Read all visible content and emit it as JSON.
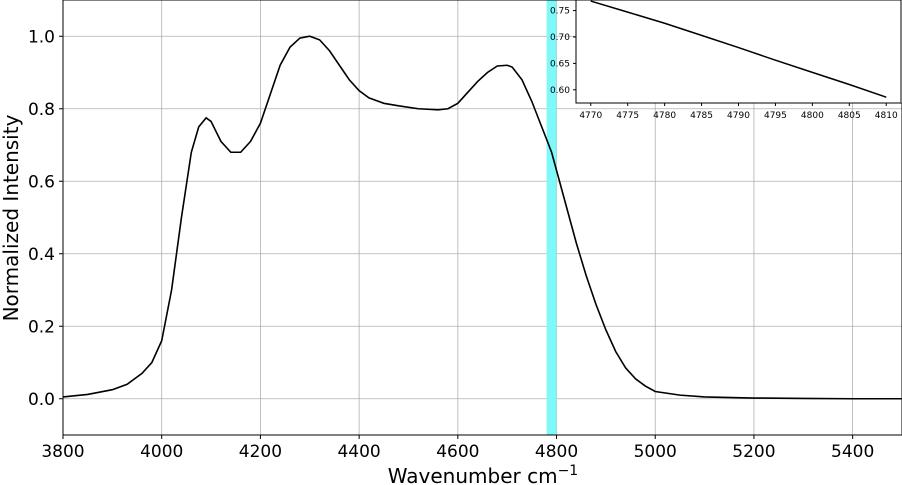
{
  "chart_data": [
    {
      "type": "line",
      "title": "",
      "xlabel": "Wavenumber cm",
      "xlabel_superscript": "−1",
      "ylabel": "Normalized Intensity",
      "xlim": [
        3800,
        5500
      ],
      "ylim": [
        -0.1,
        1.1
      ],
      "xticks": [
        "3800",
        "4000",
        "4200",
        "4400",
        "4600",
        "4800",
        "5000",
        "5200",
        "5400"
      ],
      "yticks": [
        "0.0",
        "0.2",
        "0.4",
        "0.6",
        "0.8",
        "1.0"
      ],
      "grid": true,
      "line_color": "#000000",
      "highlight_band": {
        "x_range": [
          4780,
          4800
        ],
        "color": "#7ff8fa"
      },
      "series": [
        {
          "x": [
            3800,
            3850,
            3900,
            3930,
            3960,
            3980,
            4000,
            4020,
            4040,
            4060,
            4075,
            4090,
            4100,
            4120,
            4140,
            4160,
            4180,
            4200,
            4220,
            4240,
            4260,
            4280,
            4300,
            4320,
            4340,
            4360,
            4380,
            4400,
            4420,
            4450,
            4480,
            4520,
            4560,
            4580,
            4600,
            4620,
            4640,
            4660,
            4680,
            4700,
            4710,
            4730,
            4750,
            4770,
            4790,
            4800,
            4820,
            4840,
            4860,
            4880,
            4900,
            4920,
            4940,
            4960,
            4980,
            5000,
            5050,
            5100,
            5200,
            5300,
            5400,
            5500
          ],
          "y": [
            0.005,
            0.012,
            0.025,
            0.04,
            0.07,
            0.1,
            0.16,
            0.3,
            0.5,
            0.68,
            0.75,
            0.775,
            0.765,
            0.71,
            0.68,
            0.68,
            0.71,
            0.76,
            0.84,
            0.92,
            0.97,
            0.995,
            1.0,
            0.99,
            0.96,
            0.92,
            0.88,
            0.85,
            0.83,
            0.815,
            0.808,
            0.8,
            0.797,
            0.8,
            0.815,
            0.845,
            0.875,
            0.9,
            0.918,
            0.92,
            0.915,
            0.88,
            0.82,
            0.75,
            0.68,
            0.63,
            0.53,
            0.43,
            0.34,
            0.26,
            0.19,
            0.13,
            0.085,
            0.055,
            0.035,
            0.02,
            0.01,
            0.005,
            0.002,
            0.001,
            0.0,
            0.0
          ]
        }
      ]
    },
    {
      "type": "line",
      "title": "",
      "xlabel": "",
      "ylabel": "",
      "xlim": [
        4768,
        4812
      ],
      "ylim": [
        0.575,
        0.77
      ],
      "xticks": [
        "4770",
        "4775",
        "4780",
        "4785",
        "4790",
        "4795",
        "4800",
        "4805",
        "4810"
      ],
      "yticks": [
        "0.60",
        "0.65",
        "0.70",
        "0.75"
      ],
      "grid": false,
      "line_color": "#000000",
      "series": [
        {
          "x": [
            4770,
            4775,
            4780,
            4785,
            4790,
            4795,
            4800,
            4805,
            4810
          ],
          "y": [
            0.768,
            0.747,
            0.726,
            0.703,
            0.68,
            0.656,
            0.633,
            0.61,
            0.586
          ]
        }
      ]
    }
  ]
}
